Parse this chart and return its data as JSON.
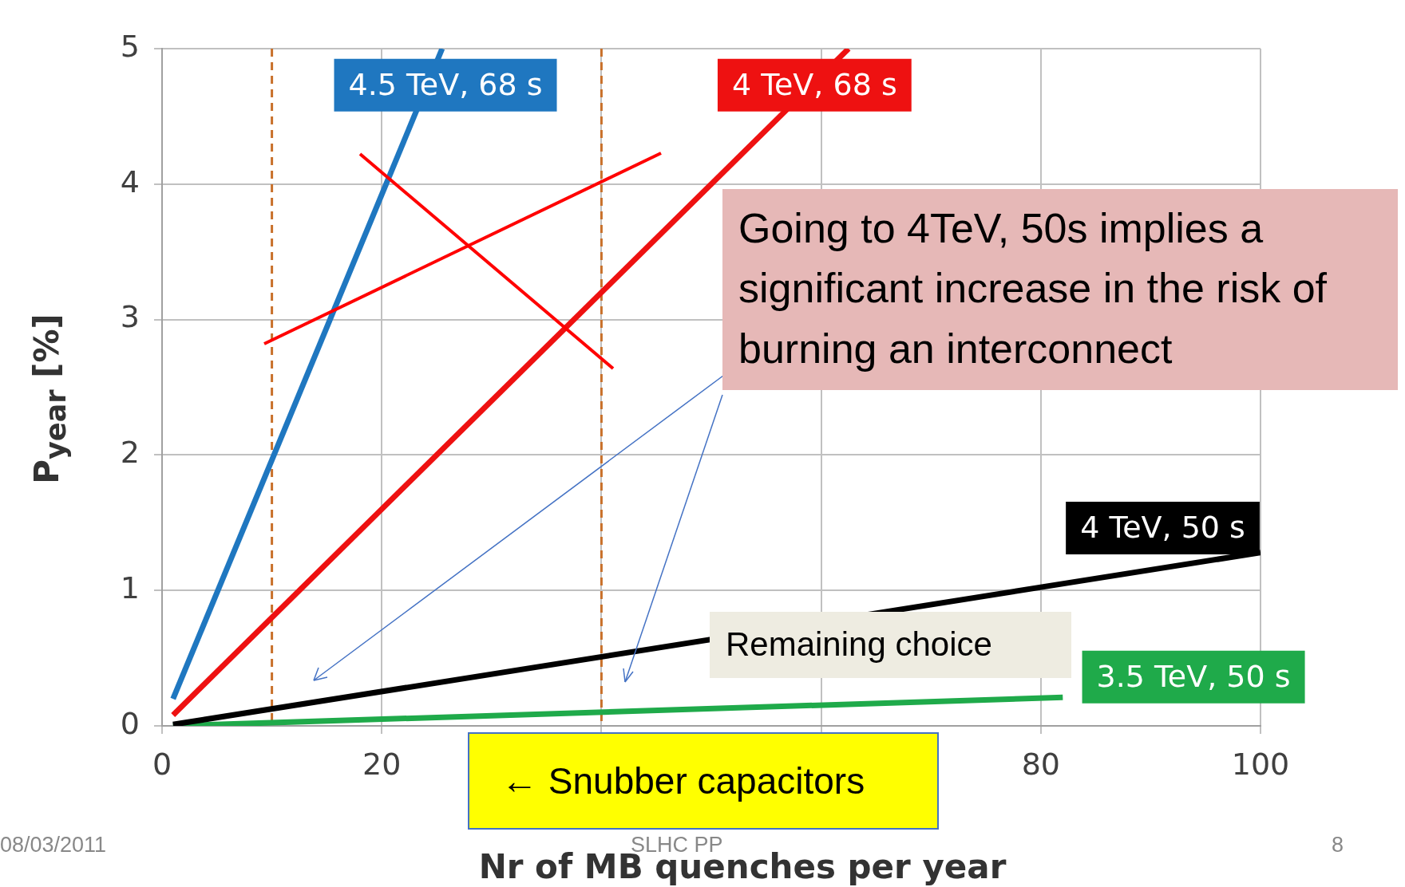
{
  "chart_data": {
    "type": "line",
    "xlabel": "Nr of MB quenches per year",
    "ylabel": "P$_{year}$ [%]",
    "xlim": [
      0,
      100
    ],
    "ylim": [
      0,
      5
    ],
    "xticks": [
      0,
      20,
      {
        "value": 40,
        "label": null
      },
      {
        "value": 60,
        "label": null
      },
      80,
      100
    ],
    "yticks": [
      0,
      1,
      2,
      3,
      4,
      5
    ],
    "grid": true,
    "legend": false,
    "marker": "none",
    "line_style": "solid",
    "series": [
      {
        "name": "4.5 TeV, 68 s",
        "color": "#1f77c0",
        "x": [
          1,
          25.5
        ],
        "values": [
          0.2,
          5
        ]
      },
      {
        "name": "4 TeV, 68 s",
        "color": "#ee1111",
        "x": [
          1,
          62.5
        ],
        "values": [
          0.08,
          5
        ]
      },
      {
        "name": "4 TeV, 50 s",
        "color": "#000000",
        "x": [
          1,
          100
        ],
        "values": [
          0.01,
          1.28
        ]
      },
      {
        "name": "3.5 TeV, 50 s",
        "color": "#1faa4a",
        "x": [
          1,
          82
        ],
        "values": [
          0,
          0.21
        ]
      }
    ],
    "ref_lines": [
      {
        "axis": "x",
        "value": 10,
        "color": "#c8702a",
        "line_style": "dashed"
      },
      {
        "axis": "x",
        "value": 40,
        "color": "#c8702a",
        "line_style": "dashed"
      }
    ],
    "annotations": [
      "Going to 4TeV, 50s implies a significant increase in the risk of burning an interconnect",
      "Remaining choice",
      "← Snubber capacitors",
      "08/03/2011",
      "SLHC PP",
      "8"
    ]
  }
}
